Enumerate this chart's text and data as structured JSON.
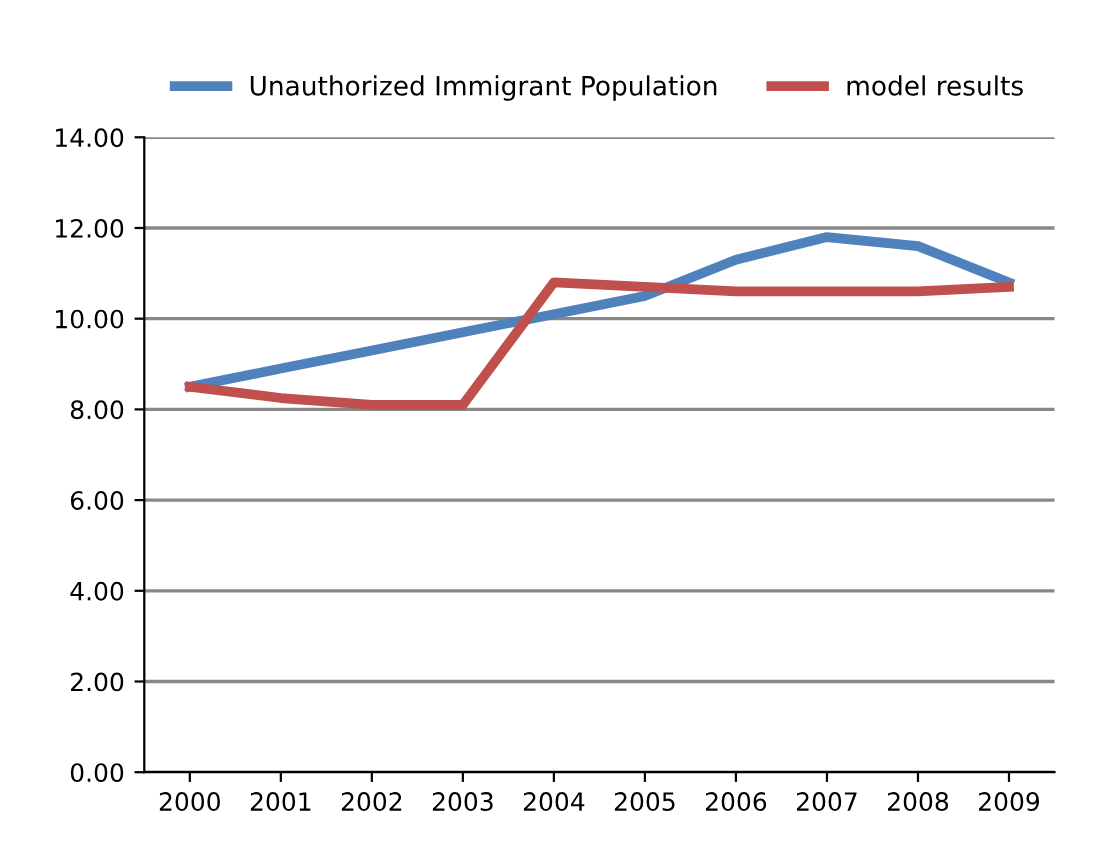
{
  "chart_data": {
    "type": "line",
    "categories": [
      "2000",
      "2001",
      "2002",
      "2003",
      "2004",
      "2005",
      "2006",
      "2007",
      "2008",
      "2009"
    ],
    "series": [
      {
        "name": "Unauthorized Immigrant Population",
        "color": "#4f81bd",
        "values": [
          8.5,
          8.9,
          9.3,
          9.7,
          10.1,
          10.5,
          11.3,
          11.8,
          11.6,
          10.8
        ]
      },
      {
        "name": "model results",
        "color": "#c0504d",
        "values": [
          8.5,
          8.25,
          8.1,
          8.1,
          10.8,
          10.7,
          10.6,
          10.6,
          10.6,
          10.7
        ]
      }
    ],
    "ylim": [
      0,
      14
    ],
    "yticks": [
      {
        "value": 0,
        "label": "0.00"
      },
      {
        "value": 2,
        "label": "2.00"
      },
      {
        "value": 4,
        "label": "4.00"
      },
      {
        "value": 6,
        "label": "6.00"
      },
      {
        "value": 8,
        "label": "8.00"
      },
      {
        "value": 10,
        "label": "10.00"
      },
      {
        "value": 12,
        "label": "12.00"
      },
      {
        "value": 14,
        "label": "14.00"
      }
    ],
    "grid": "y",
    "legend": "top",
    "marker": "none",
    "line_style": "solid"
  }
}
